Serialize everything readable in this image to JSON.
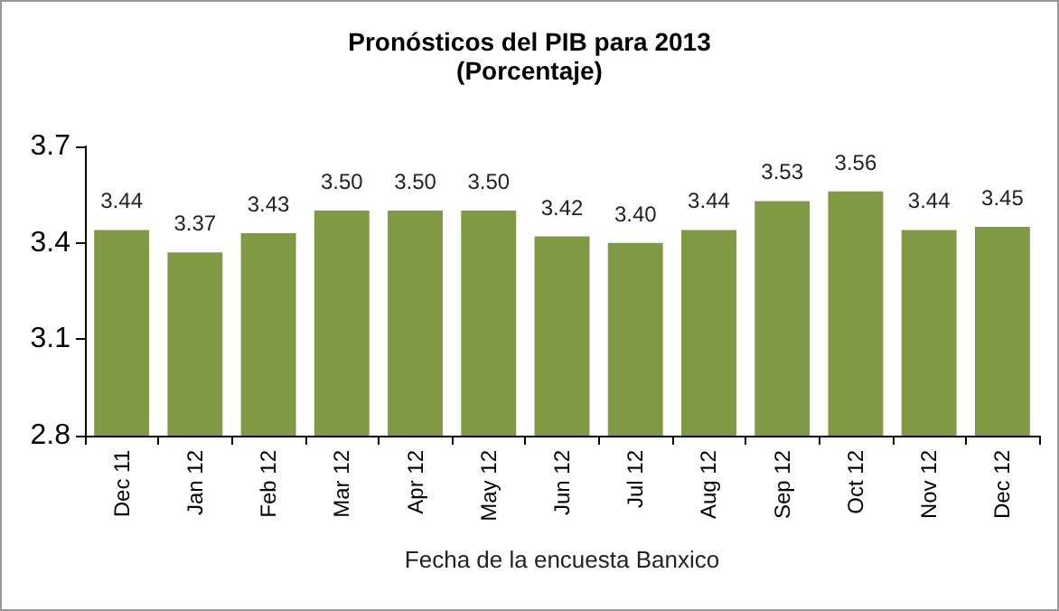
{
  "chart_data": {
    "type": "bar",
    "title": "Pronósticos del PIB para 2013",
    "subtitle": "(Porcentaje)",
    "xlabel": "Fecha de la encuesta Banxico",
    "categories": [
      "Dec 11",
      "Jan 12",
      "Feb 12",
      "Mar 12",
      "Apr 12",
      "May 12",
      "Jun 12",
      "Jul 12",
      "Aug 12",
      "Sep 12",
      "Oct 12",
      "Nov 12",
      "Dec 12"
    ],
    "values": [
      3.44,
      3.37,
      3.43,
      3.5,
      3.5,
      3.5,
      3.42,
      3.4,
      3.44,
      3.53,
      3.56,
      3.44,
      3.45
    ],
    "value_labels": [
      "3.44",
      "3.37",
      "3.43",
      "3.50",
      "3.50",
      "3.50",
      "3.42",
      "3.40",
      "3.44",
      "3.53",
      "3.56",
      "3.44",
      "3.45"
    ],
    "color": "#7f9a43",
    "ylim": [
      2.8,
      3.7
    ],
    "yticks": [
      2.8,
      3.1,
      3.4,
      3.7
    ],
    "grid": false
  }
}
